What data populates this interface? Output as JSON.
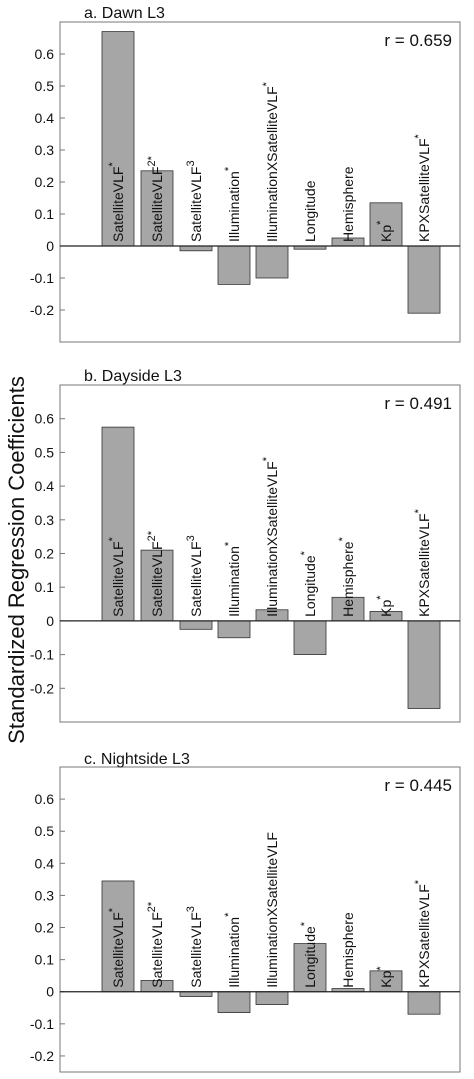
{
  "figure": {
    "ylabel": "Standardized Regression Coefficients"
  },
  "chart_data": [
    {
      "type": "bar",
      "title": "a. Dawn L3",
      "annotation": "r = 0.659",
      "ylim": [
        -0.3,
        0.7
      ],
      "yticks": [
        -0.2,
        -0.1,
        0,
        0.1,
        0.2,
        0.3,
        0.4,
        0.5,
        0.6
      ],
      "ytick_labels": [
        "-0.2",
        "-0.1",
        "0",
        "0.1",
        "0.2",
        "0.3",
        "0.4",
        "0.5",
        "0.6"
      ],
      "categories": [
        {
          "name": "SatelliteVLF",
          "sup": "*"
        },
        {
          "name": "SatelliteVLF",
          "sup": "2*"
        },
        {
          "name": "SatelliteVLF",
          "sup": "3"
        },
        {
          "name": "Illumination",
          "sup": "*"
        },
        {
          "name": "IlluminationXSatelliteVLF",
          "sup": "*"
        },
        {
          "name": "Longitude",
          "sup": ""
        },
        {
          "name": "Hemisphere",
          "sup": ""
        },
        {
          "name": "Kp",
          "sup": "*"
        },
        {
          "name": "KPXSatelliteVLF",
          "sup": "*"
        }
      ],
      "values": [
        0.67,
        0.235,
        -0.015,
        -0.12,
        -0.1,
        -0.01,
        0.025,
        0.135,
        -0.21
      ],
      "bar_color": "#a6a6a6",
      "grid": false
    },
    {
      "type": "bar",
      "title": "b. Dayside L3",
      "annotation": "r = 0.491",
      "ylim": [
        -0.3,
        0.7
      ],
      "yticks": [
        -0.2,
        -0.1,
        0,
        0.1,
        0.2,
        0.3,
        0.4,
        0.5,
        0.6
      ],
      "ytick_labels": [
        "-0.2",
        "-0.1",
        "0",
        "0.1",
        "0.2",
        "0.3",
        "0.4",
        "0.5",
        "0.6"
      ],
      "categories": [
        {
          "name": "SatelliteVLF",
          "sup": "*"
        },
        {
          "name": "SatelliteVLF",
          "sup": "2*"
        },
        {
          "name": "SatelliteVLF",
          "sup": "3"
        },
        {
          "name": "Illumination",
          "sup": "*"
        },
        {
          "name": "IlluminationXSatelliteVLF",
          "sup": "*"
        },
        {
          "name": "Longitude",
          "sup": "*"
        },
        {
          "name": "Hemisphere",
          "sup": "*"
        },
        {
          "name": "Kp",
          "sup": "*"
        },
        {
          "name": "KPXSatelliteVLF",
          "sup": "*"
        }
      ],
      "values": [
        0.575,
        0.21,
        -0.025,
        -0.05,
        0.033,
        -0.1,
        0.07,
        0.028,
        -0.26
      ],
      "bar_color": "#a6a6a6",
      "grid": false
    },
    {
      "type": "bar",
      "title": "c. Nightside L3",
      "annotation": "r = 0.445",
      "ylim": [
        -0.25,
        0.7
      ],
      "yticks": [
        -0.2,
        -0.1,
        0,
        0.1,
        0.2,
        0.3,
        0.4,
        0.5,
        0.6
      ],
      "ytick_labels": [
        "-0.2",
        "-0.1",
        "0",
        "0.1",
        "0.2",
        "0.3",
        "0.4",
        "0.5",
        "0.6"
      ],
      "categories": [
        {
          "name": "SatelliteVLF",
          "sup": "*"
        },
        {
          "name": "SatelliteVLF",
          "sup": "2*"
        },
        {
          "name": "SatelliteVLF",
          "sup": "3"
        },
        {
          "name": "Illumination",
          "sup": "*"
        },
        {
          "name": "IlluminationXSatelliteVLF",
          "sup": ""
        },
        {
          "name": "Longitude",
          "sup": "*"
        },
        {
          "name": "Hemisphere",
          "sup": ""
        },
        {
          "name": "Kp",
          "sup": "*"
        },
        {
          "name": "KPXSatelliteVLF",
          "sup": "*"
        }
      ],
      "values": [
        0.345,
        0.035,
        -0.015,
        -0.065,
        -0.04,
        0.15,
        0.01,
        0.065,
        -0.07
      ],
      "bar_color": "#a6a6a6",
      "grid": false
    }
  ]
}
